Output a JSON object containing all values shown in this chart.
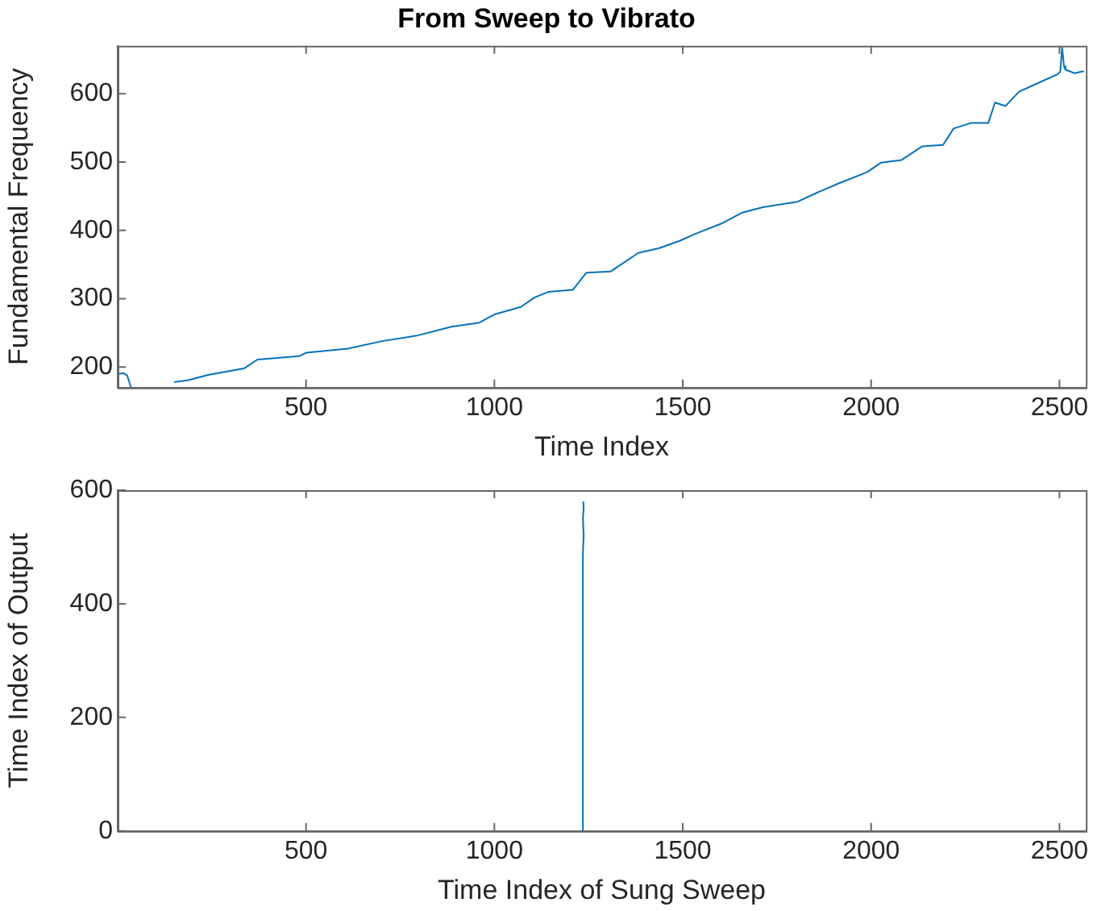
{
  "chart_data": [
    {
      "type": "line",
      "title": "From Sweep to Vibrato",
      "xlabel": "Time Index",
      "ylabel": "Fundamental Frequency",
      "color": "#0072bd",
      "marker": "none",
      "grid": false,
      "x": [
        0,
        15,
        25,
        35,
        60,
        114,
        150,
        188,
        243,
        335,
        371,
        482,
        500,
        610,
        702,
        794,
        886,
        960,
        1000,
        1070,
        1107,
        1143,
        1208,
        1244,
        1309,
        1382,
        1438,
        1493,
        1529,
        1603,
        1658,
        1713,
        1805,
        1860,
        1915,
        1989,
        2026,
        2081,
        2136,
        2191,
        2219,
        2265,
        2311,
        2329,
        2357,
        2393,
        2449,
        2494,
        2502,
        2507,
        2512,
        2516,
        2540,
        2565
      ],
      "values": [
        190,
        191,
        188,
        171,
        null,
        null,
        178,
        181,
        189,
        198,
        211,
        216,
        221,
        227,
        238,
        246,
        259,
        265,
        277,
        288,
        302,
        310,
        313,
        338,
        340,
        367,
        374,
        385,
        394,
        410,
        426,
        434,
        442,
        456,
        469,
        485,
        499,
        503,
        523,
        525,
        549,
        557,
        557,
        587,
        582,
        603,
        617,
        628,
        632,
        668,
        640,
        635,
        630,
        633
      ],
      "xlim": [
        0,
        2570
      ],
      "ylim": [
        170,
        670
      ],
      "xticks": [
        500,
        1000,
        1500,
        2000,
        2500
      ],
      "yticks": [
        200,
        300,
        400,
        500,
        600
      ]
    },
    {
      "type": "line",
      "xlabel": "Time Index of Sung Sweep",
      "ylabel": "Time Index of Output",
      "color": "#0072bd",
      "marker": "none",
      "grid": false,
      "x": [
        1235,
        1236,
        1234,
        1236,
        1234,
        1236,
        1233,
        1236,
        1235,
        1233,
        1236,
        1234,
        1236,
        1235,
        1237,
        1235,
        1237,
        1236
      ],
      "values": [
        0,
        40,
        80,
        120,
        150,
        190,
        220,
        260,
        300,
        330,
        370,
        410,
        450,
        490,
        520,
        550,
        570,
        580
      ],
      "xlim": [
        0,
        2570
      ],
      "ylim": [
        0,
        600
      ],
      "xticks": [
        500,
        1000,
        1500,
        2000,
        2500
      ],
      "yticks": [
        0,
        200,
        400,
        600
      ]
    }
  ]
}
